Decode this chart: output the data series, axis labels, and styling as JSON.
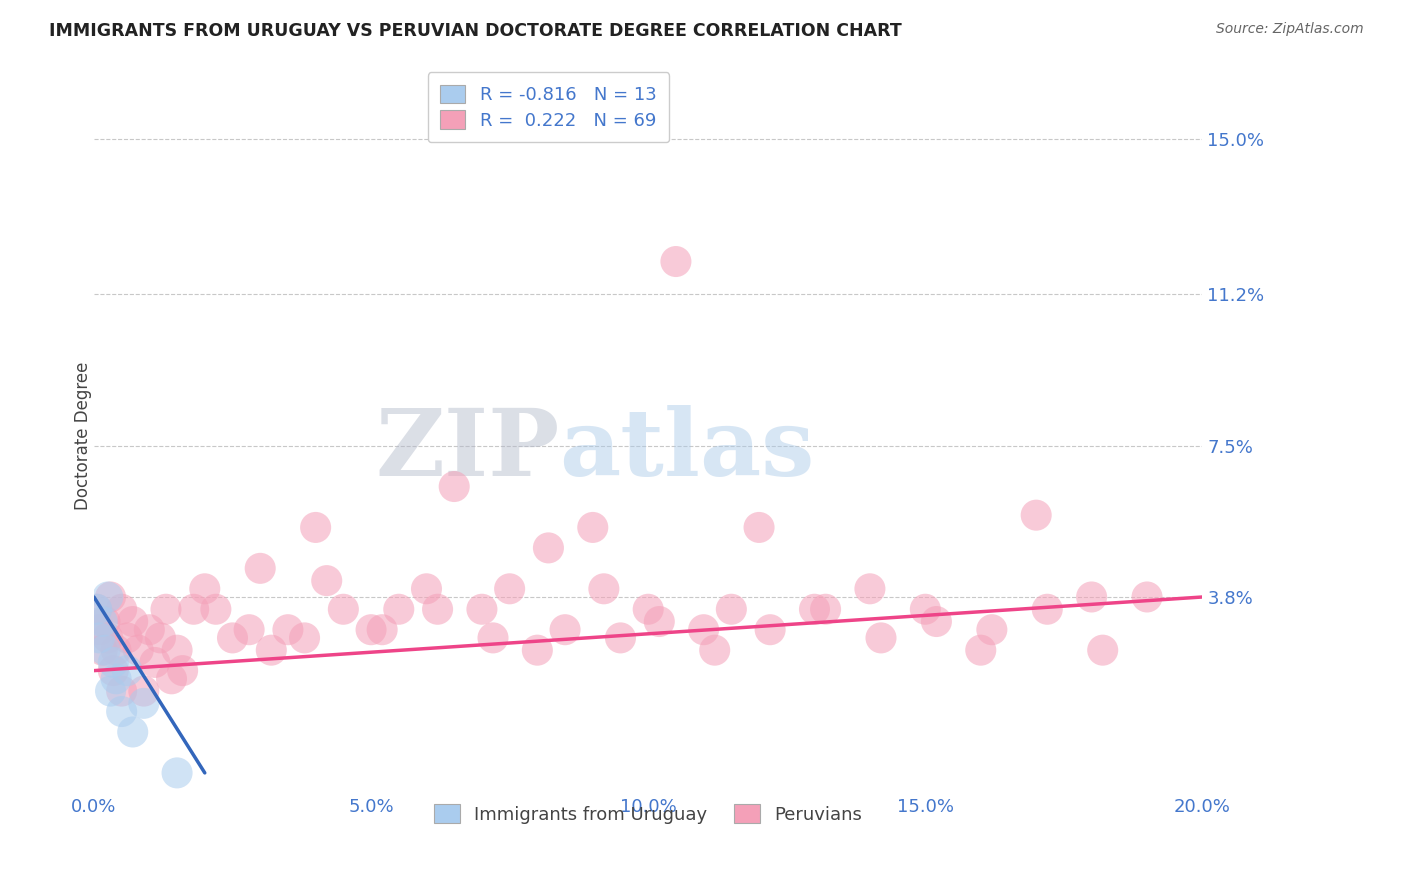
{
  "title": "IMMIGRANTS FROM URUGUAY VS PERUVIAN DOCTORATE DEGREE CORRELATION CHART",
  "source": "Source: ZipAtlas.com",
  "ylabel": "Doctorate Degree",
  "xlim": [
    0.0,
    20.0
  ],
  "ylim": [
    -1.0,
    16.5
  ],
  "yticks": [
    3.8,
    7.5,
    11.2,
    15.0
  ],
  "ytick_labels": [
    "3.8%",
    "7.5%",
    "11.2%",
    "15.0%"
  ],
  "xticks": [
    0.0,
    5.0,
    10.0,
    15.0,
    20.0
  ],
  "xtick_labels": [
    "0.0%",
    "5.0%",
    "10.0%",
    "15.0%",
    "20.0%"
  ],
  "legend_entry1_r": "-0.816",
  "legend_entry1_n": "13",
  "legend_entry2_r": "0.222",
  "legend_entry2_n": "69",
  "color_uruguay": "#aaccee",
  "color_peru": "#f4a0b8",
  "line_color_uruguay": "#3366bb",
  "line_color_peru": "#ee4488",
  "watermark_zip": "ZIP",
  "watermark_atlas": "atlas",
  "background_color": "#ffffff",
  "grid_color": "#c8c8c8",
  "tick_color": "#4477cc",
  "title_color": "#222222",
  "uruguay_scatter_x": [
    0.05,
    0.1,
    0.15,
    0.2,
    0.25,
    0.3,
    0.35,
    0.4,
    0.5,
    0.6,
    0.7,
    0.9,
    1.5
  ],
  "uruguay_scatter_y": [
    3.5,
    2.8,
    3.2,
    2.5,
    3.8,
    1.5,
    2.2,
    1.8,
    1.0,
    2.0,
    0.5,
    1.2,
    -0.5
  ],
  "peru_scatter_x": [
    0.05,
    0.1,
    0.15,
    0.2,
    0.25,
    0.3,
    0.35,
    0.4,
    0.5,
    0.5,
    0.6,
    0.7,
    0.8,
    0.9,
    1.0,
    1.1,
    1.2,
    1.3,
    1.4,
    1.5,
    1.6,
    1.8,
    2.0,
    2.2,
    2.5,
    2.8,
    3.0,
    3.2,
    3.5,
    3.8,
    4.0,
    4.5,
    5.0,
    5.5,
    6.0,
    6.5,
    7.0,
    7.5,
    8.0,
    8.5,
    9.0,
    9.5,
    10.0,
    10.5,
    11.0,
    11.5,
    12.0,
    13.0,
    14.0,
    15.0,
    16.0,
    17.0,
    18.0,
    4.2,
    5.2,
    6.2,
    7.2,
    8.2,
    9.2,
    10.2,
    11.2,
    12.2,
    13.2,
    14.2,
    15.2,
    16.2,
    17.2,
    18.2,
    19.0
  ],
  "peru_scatter_y": [
    3.5,
    3.0,
    2.5,
    3.2,
    2.8,
    3.8,
    2.0,
    2.5,
    3.5,
    1.5,
    2.8,
    3.2,
    2.5,
    1.5,
    3.0,
    2.2,
    2.8,
    3.5,
    1.8,
    2.5,
    2.0,
    3.5,
    4.0,
    3.5,
    2.8,
    3.0,
    4.5,
    2.5,
    3.0,
    2.8,
    5.5,
    3.5,
    3.0,
    3.5,
    4.0,
    6.5,
    3.5,
    4.0,
    2.5,
    3.0,
    5.5,
    2.8,
    3.5,
    12.0,
    3.0,
    3.5,
    5.5,
    3.5,
    4.0,
    3.5,
    2.5,
    5.8,
    3.8,
    4.2,
    3.0,
    3.5,
    2.8,
    5.0,
    4.0,
    3.2,
    2.5,
    3.0,
    3.5,
    2.8,
    3.2,
    3.0,
    3.5,
    2.5,
    3.8
  ],
  "peru_line_x": [
    0.0,
    20.0
  ],
  "peru_line_y": [
    2.0,
    3.8
  ],
  "uruguay_line_x": [
    0.0,
    2.0
  ],
  "uruguay_line_y": [
    3.8,
    -0.5
  ]
}
